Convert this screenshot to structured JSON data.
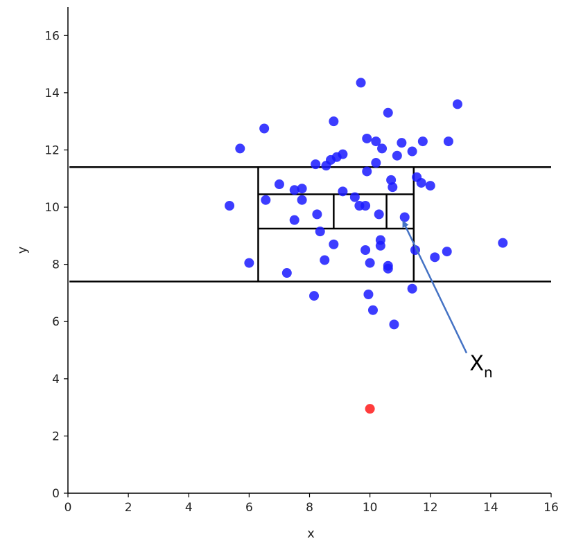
{
  "chart_data": {
    "type": "scatter",
    "title": "",
    "xlabel": "x",
    "ylabel": "y",
    "xlim": [
      0,
      16
    ],
    "ylim": [
      0,
      17
    ],
    "xticks": [
      0,
      2,
      4,
      6,
      8,
      10,
      12,
      14,
      16
    ],
    "yticks": [
      0,
      2,
      4,
      6,
      8,
      10,
      12,
      14,
      16
    ],
    "grid": false,
    "series": [
      {
        "color": "#1a1aff",
        "points": [
          [
            9.7,
            14.35
          ],
          [
            10.6,
            13.3
          ],
          [
            12.9,
            13.6
          ],
          [
            8.8,
            13.0
          ],
          [
            6.5,
            12.75
          ],
          [
            5.7,
            12.05
          ],
          [
            9.9,
            12.4
          ],
          [
            10.2,
            12.3
          ],
          [
            10.4,
            12.05
          ],
          [
            11.05,
            12.25
          ],
          [
            11.75,
            12.3
          ],
          [
            12.6,
            12.3
          ],
          [
            11.4,
            11.95
          ],
          [
            10.9,
            11.8
          ],
          [
            9.1,
            11.85
          ],
          [
            8.9,
            11.75
          ],
          [
            8.7,
            11.65
          ],
          [
            8.55,
            11.45
          ],
          [
            8.2,
            11.5
          ],
          [
            10.2,
            11.55
          ],
          [
            9.9,
            11.25
          ],
          [
            10.7,
            10.95
          ],
          [
            11.55,
            11.05
          ],
          [
            11.7,
            10.85
          ],
          [
            12.0,
            10.75
          ],
          [
            10.75,
            10.7
          ],
          [
            7.0,
            10.8
          ],
          [
            7.5,
            10.6
          ],
          [
            7.75,
            10.65
          ],
          [
            9.1,
            10.55
          ],
          [
            9.5,
            10.35
          ],
          [
            6.55,
            10.25
          ],
          [
            7.75,
            10.25
          ],
          [
            5.35,
            10.05
          ],
          [
            9.65,
            10.05
          ],
          [
            9.85,
            10.05
          ],
          [
            8.25,
            9.75
          ],
          [
            10.3,
            9.75
          ],
          [
            11.15,
            9.65
          ],
          [
            7.5,
            9.55
          ],
          [
            8.35,
            9.15
          ],
          [
            10.35,
            8.85
          ],
          [
            8.8,
            8.7
          ],
          [
            10.35,
            8.65
          ],
          [
            9.85,
            8.5
          ],
          [
            11.5,
            8.5
          ],
          [
            12.55,
            8.45
          ],
          [
            14.4,
            8.75
          ],
          [
            12.15,
            8.25
          ],
          [
            8.5,
            8.15
          ],
          [
            6.0,
            8.05
          ],
          [
            10.0,
            8.05
          ],
          [
            10.6,
            7.95
          ],
          [
            10.6,
            7.85
          ],
          [
            7.25,
            7.7
          ],
          [
            11.4,
            7.15
          ],
          [
            8.15,
            6.9
          ],
          [
            9.95,
            6.95
          ],
          [
            10.1,
            6.4
          ],
          [
            10.8,
            5.9
          ]
        ]
      },
      {
        "color": "#ff1a1a",
        "points": [
          [
            10.0,
            2.95
          ]
        ]
      }
    ],
    "segments": [
      [
        0.05,
        11.4,
        16.0,
        11.4
      ],
      [
        0.05,
        7.4,
        16.0,
        7.4
      ],
      [
        6.3,
        7.4,
        6.3,
        11.4
      ],
      [
        11.45,
        7.4,
        11.45,
        11.4
      ],
      [
        6.3,
        10.45,
        11.45,
        10.45
      ],
      [
        6.3,
        9.25,
        11.45,
        9.25
      ],
      [
        8.8,
        9.25,
        8.8,
        10.45
      ],
      [
        10.55,
        9.25,
        10.55,
        10.45
      ]
    ],
    "annotation": {
      "text": "X",
      "subscript": "n",
      "text_at": [
        13.3,
        4.3
      ],
      "arrow_from": [
        13.2,
        4.9
      ],
      "arrow_to": [
        11.1,
        9.5
      ],
      "arrow_color": "#4472c4"
    }
  }
}
